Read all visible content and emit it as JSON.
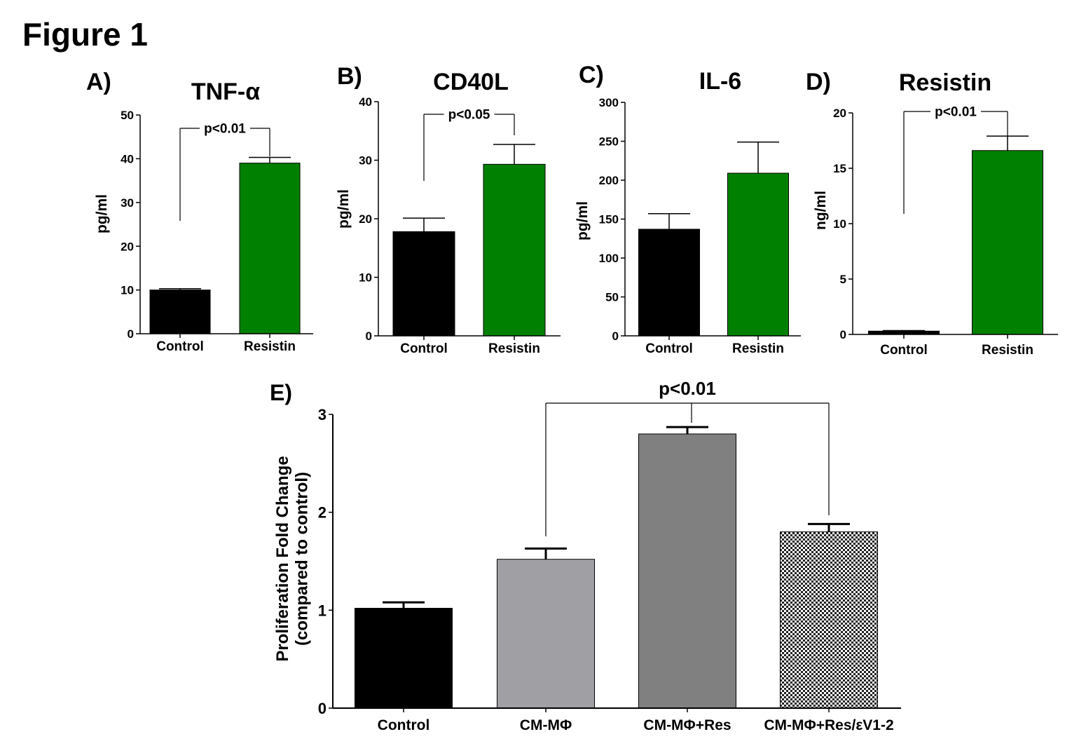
{
  "figure_title": "Figure 1",
  "chart_data": [
    {
      "type": "bar",
      "panel": "A)",
      "title": "TNF-α",
      "ylabel": "pg/ml",
      "ylim": [
        0,
        50
      ],
      "yticks": [
        0,
        10,
        20,
        30,
        40,
        50
      ],
      "categories": [
        "Control",
        "Resistin"
      ],
      "values": [
        10.0,
        39.0
      ],
      "errors": [
        0.3,
        1.3
      ],
      "colors": [
        "#000000",
        "#008000"
      ],
      "significance": {
        "label": "p<0.01",
        "from": 0,
        "to": 1
      }
    },
    {
      "type": "bar",
      "panel": "B)",
      "title": "CD40L",
      "ylabel": "pg/ml",
      "ylim": [
        0,
        40
      ],
      "yticks": [
        0,
        10,
        20,
        30,
        40
      ],
      "categories": [
        "Control",
        "Resistin"
      ],
      "values": [
        17.8,
        29.3
      ],
      "errors": [
        2.3,
        3.4
      ],
      "colors": [
        "#000000",
        "#008000"
      ],
      "significance": {
        "label": "p<0.05",
        "from": 0,
        "to": 1
      }
    },
    {
      "type": "bar",
      "panel": "C)",
      "title": "IL-6",
      "ylabel": "pg/ml",
      "ylim": [
        0,
        300
      ],
      "yticks": [
        0,
        50,
        100,
        150,
        200,
        250,
        300
      ],
      "categories": [
        "Control",
        "Resistin"
      ],
      "values": [
        137,
        209
      ],
      "errors": [
        20,
        40
      ],
      "colors": [
        "#000000",
        "#008000"
      ]
    },
    {
      "type": "bar",
      "panel": "D)",
      "title": "Resistin",
      "ylabel": "ng/ml",
      "ylim": [
        0,
        20
      ],
      "yticks": [
        0,
        5,
        10,
        15,
        20
      ],
      "categories": [
        "Control",
        "Resistin"
      ],
      "values": [
        0.3,
        16.6
      ],
      "errors": [
        0.05,
        1.3
      ],
      "colors": [
        "#000000",
        "#008000"
      ],
      "significance": {
        "label": "p<0.01",
        "from": 0,
        "to": 1
      }
    },
    {
      "type": "bar",
      "panel": "E)",
      "title": "",
      "ylabel": [
        "Proliferation Fold Change",
        "(compared to control)"
      ],
      "ylim": [
        0,
        3
      ],
      "yticks": [
        0,
        1,
        2,
        3
      ],
      "categories": [
        "Control",
        "CM-MΦ",
        "CM-MΦ+Res",
        "CM-MΦ+Res/εV1-2"
      ],
      "values": [
        1.02,
        1.52,
        2.8,
        1.8
      ],
      "errors": [
        0.06,
        0.11,
        0.07,
        0.08
      ],
      "colors": [
        "#000000",
        "#a0a0a4",
        "#808080",
        "checker"
      ],
      "significance": {
        "label": "p<0.01",
        "from": 1,
        "to": 3
      }
    }
  ]
}
